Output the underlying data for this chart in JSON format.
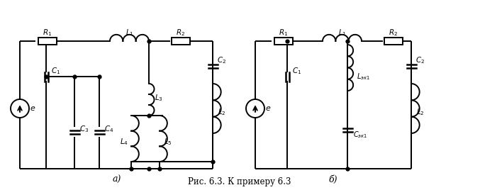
{
  "title": "Рис. 6.3. К примеру 6.3",
  "label_a": "а)",
  "label_b": "б)",
  "bg_color": "#ffffff",
  "line_color": "#000000",
  "fig_width": 6.77,
  "fig_height": 2.68
}
